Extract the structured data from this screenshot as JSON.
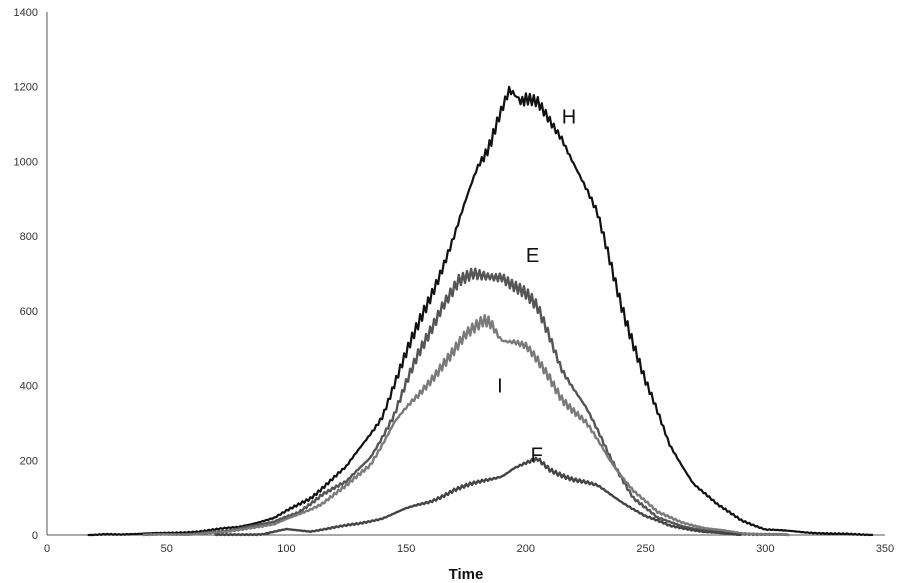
{
  "chart_data": {
    "type": "line",
    "title": "",
    "xlabel": "Time",
    "ylabel": "",
    "xlim": [
      0,
      350
    ],
    "ylim": [
      0,
      1400
    ],
    "xticks": [
      "0",
      "50",
      "100",
      "150",
      "200",
      "250",
      "300",
      "350"
    ],
    "yticks": [
      "0",
      "200",
      "400",
      "600",
      "800",
      "1000",
      "1200",
      "1400"
    ],
    "grid": false,
    "legend": "none",
    "series": [
      {
        "name": "H",
        "color": "#111111",
        "x": [
          17,
          30,
          50,
          65,
          80,
          95,
          110,
          125,
          140,
          150,
          160,
          170,
          180,
          188,
          193,
          197,
          200,
          205,
          210,
          215,
          220,
          230,
          240,
          250,
          260,
          270,
          280,
          290,
          300,
          315,
          330,
          345
        ],
        "y": [
          0,
          2,
          5,
          10,
          22,
          45,
          100,
          180,
          320,
          480,
          640,
          800,
          980,
          1100,
          1180,
          1175,
          1160,
          1150,
          1110,
          1070,
          1000,
          850,
          620,
          410,
          240,
          140,
          80,
          40,
          15,
          8,
          3,
          0
        ]
      },
      {
        "name": "E",
        "color": "#555555",
        "x": [
          40,
          60,
          75,
          85,
          95,
          105,
          115,
          125,
          135,
          145,
          155,
          165,
          172,
          178,
          185,
          190,
          195,
          200,
          205,
          210,
          215,
          225,
          235,
          245,
          255,
          265,
          275,
          290,
          310
        ],
        "y": [
          0,
          3,
          10,
          25,
          35,
          60,
          110,
          140,
          210,
          320,
          480,
          620,
          690,
          710,
          695,
          700,
          670,
          640,
          600,
          530,
          450,
          340,
          210,
          100,
          45,
          25,
          12,
          3,
          0
        ]
      },
      {
        "name": "I",
        "color": "#7a7a7a",
        "x": [
          40,
          60,
          75,
          85,
          95,
          105,
          115,
          125,
          135,
          145,
          155,
          165,
          175,
          182,
          186,
          190,
          195,
          200,
          205,
          210,
          215,
          225,
          235,
          245,
          255,
          265,
          275,
          290,
          310
        ],
        "y": [
          0,
          2,
          8,
          20,
          28,
          55,
          85,
          130,
          190,
          300,
          370,
          460,
          530,
          570,
          555,
          530,
          520,
          500,
          460,
          420,
          370,
          300,
          200,
          120,
          60,
          35,
          18,
          5,
          0
        ]
      },
      {
        "name": "F",
        "color": "#444444",
        "x": [
          70,
          90,
          100,
          110,
          120,
          130,
          140,
          150,
          160,
          170,
          180,
          190,
          195,
          200,
          205,
          210,
          220,
          230,
          240,
          250,
          260,
          275,
          290
        ],
        "y": [
          0,
          2,
          15,
          10,
          20,
          30,
          45,
          70,
          90,
          120,
          140,
          160,
          180,
          190,
          200,
          175,
          150,
          130,
          90,
          50,
          25,
          8,
          0
        ]
      }
    ],
    "annotations": [
      {
        "text": "H",
        "x": 215,
        "y": 1120
      },
      {
        "text": "E",
        "x": 200,
        "y": 750
      },
      {
        "text": "I",
        "x": 188,
        "y": 400
      },
      {
        "text": "F",
        "x": 202,
        "y": 215
      }
    ]
  }
}
